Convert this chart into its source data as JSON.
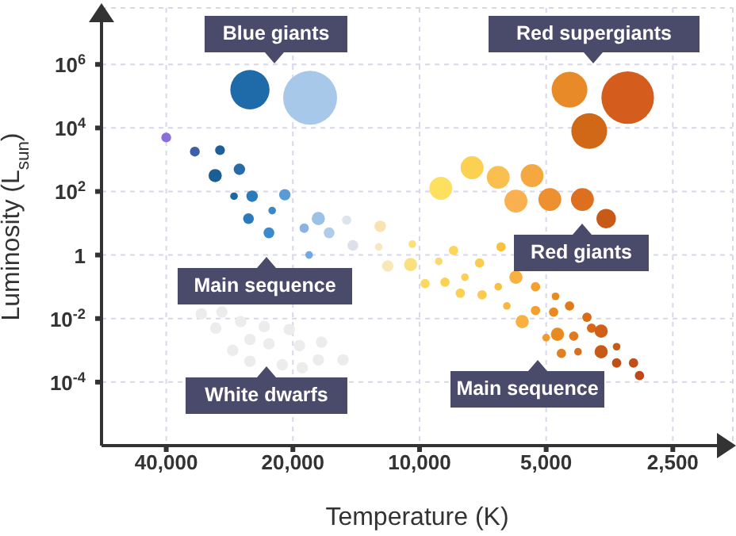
{
  "chart_data": {
    "type": "bubble",
    "xlabel": "Temperature (K)",
    "ylabel": "Luminosity (L$_{sun}$)",
    "log": "xy",
    "grid": true,
    "xlim": [
      57000,
      1800
    ],
    "xticks": [
      {
        "value": 40000,
        "label": "40,000"
      },
      {
        "value": 20000,
        "label": "20,000"
      },
      {
        "value": 10000,
        "label": "10,000"
      },
      {
        "value": 5000,
        "label": "5,000"
      },
      {
        "value": 2500,
        "label": "2,500"
      }
    ],
    "ylim": [
      1e-06,
      60000000.0
    ],
    "yticks": [
      {
        "value": 0.0001,
        "label": "10$^{-4}$"
      },
      {
        "value": 0.01,
        "label": "10$^{-2}$"
      },
      1,
      {
        "value": 100,
        "label": "10$^{2}$"
      },
      {
        "value": 10000,
        "label": "10$^{4}$"
      },
      {
        "value": 1000000,
        "label": "10$^{6}$"
      }
    ],
    "series": [
      {
        "x": [
          25300,
          18200
        ],
        "values": [
          160000,
          89000
        ],
        "sizes": [
          0.53,
          1
        ],
        "colors": [
          "#1f6aa8",
          "#a8c8ea"
        ]
      },
      {
        "x": [
          40000,
          34200,
          29800,
          30600,
          26800,
          27600,
          25000,
          20900,
          22400,
          25500,
          22800,
          17400,
          18800,
          16400,
          14900,
          14400,
          18300
        ],
        "values": [
          5000,
          1800,
          2000,
          316,
          500,
          71,
          71,
          79,
          25,
          14,
          5,
          14,
          7,
          5,
          12.6,
          2,
          1
        ],
        "sizes": [
          0.033,
          0.033,
          0.033,
          0.06,
          0.045,
          0.02,
          0.045,
          0.045,
          0.02,
          0.04,
          0.04,
          0.06,
          0.03,
          0.04,
          0.03,
          0.04,
          0.02
        ],
        "colors": [
          "#8a6fd6",
          "#3e5fa8",
          "#1f5e9a",
          "#1a5e96",
          "#2a6aa8",
          "#1a6aa0",
          "#2a7abc",
          "#5a9ad6",
          "#3a88cc",
          "#2a7abc",
          "#3a8ad0",
          "#9cc0e6",
          "#8ab4e0",
          "#b0cce8",
          "#dde4ee",
          "#dde0e8",
          "#70a8e8"
        ]
      },
      {
        "x": [
          33000,
          29500,
          30500,
          26600,
          23400,
          20400,
          25300,
          22800,
          27800,
          19300,
          17100,
          25300,
          21200,
          19000,
          17400,
          15200
        ],
        "values": [
          0.014,
          0.016,
          0.005,
          0.008,
          0.0056,
          0.0045,
          0.0022,
          0.0016,
          0.001,
          0.0014,
          0.0018,
          0.00045,
          0.00035,
          0.00028,
          0.0005,
          0.0005
        ],
        "sizes": [
          0.045,
          0.045,
          0.045,
          0.045,
          0.045,
          0.045,
          0.045,
          0.045,
          0.045,
          0.045,
          0.045,
          0.045,
          0.045,
          0.045,
          0.045,
          0.045
        ],
        "colors": [
          "#ececec",
          "#ececec",
          "#ececec",
          "#ececec",
          "#ececec",
          "#ececec",
          "#ececec",
          "#ececec",
          "#ececec",
          "#ececec",
          "#ececec",
          "#ececec",
          "#ececec",
          "#ececec",
          "#ececec",
          "#ececec"
        ]
      },
      {
        "x": [
          12400,
          12500,
          10400,
          8300,
          6400,
          11900,
          10500,
          9000,
          7200,
          9700,
          8700,
          7800,
          5900,
          8000,
          7100,
          6500,
          5300,
          6200,
          5700,
          5300,
          4750,
          4800,
          4400,
          4000,
          3900,
          3700,
          4700,
          4300,
          5000,
          4600,
          4200,
          3700,
          3400,
          3400,
          3100,
          3000
        ],
        "values": [
          8,
          1.8,
          2.2,
          1.4,
          1.8,
          0.45,
          0.5,
          0.63,
          0.56,
          0.126,
          0.14,
          0.2,
          0.2,
          0.063,
          0.056,
          0.1,
          0.1,
          0.025,
          0.008,
          0.018,
          0.05,
          0.016,
          0.025,
          0.011,
          0.005,
          0.004,
          0.0032,
          0.0028,
          0.0025,
          0.0008,
          0.0009,
          0.0009,
          0.0013,
          0.0004,
          0.0004,
          0.00016
        ],
        "sizes": [
          0.045,
          0.02,
          0.02,
          0.03,
          0.03,
          0.045,
          0.06,
          0.02,
          0.03,
          0.03,
          0.03,
          0.02,
          0.06,
          0.03,
          0.03,
          0.02,
          0.03,
          0.02,
          0.06,
          0.03,
          0.02,
          0.03,
          0.03,
          0.03,
          0.03,
          0.06,
          0.06,
          0.03,
          0.02,
          0.03,
          0.02,
          0.06,
          0.02,
          0.03,
          0.03,
          0.03
        ],
        "colors": [
          "#f7e3b0",
          "#f7e8c0",
          "#fbe07a",
          "#fcd55a",
          "#fbc040",
          "#f8e8b8",
          "#fbe080",
          "#fcd870",
          "#fccc50",
          "#fcd860",
          "#fcd050",
          "#fcd050",
          "#f8b040",
          "#fcd050",
          "#fbc850",
          "#f9c040",
          "#f4a030",
          "#f8b840",
          "#f8b040",
          "#f4a030",
          "#e88a20",
          "#e88a20",
          "#e07a1a",
          "#d86a18",
          "#d86818",
          "#d06018",
          "#e88a20",
          "#e07a20",
          "#f09a30",
          "#e08020",
          "#d87020",
          "#c85a18",
          "#c85a18",
          "#c05018",
          "#c05018",
          "#c04818"
        ]
      },
      {
        "x": [
          8900,
          7500,
          6500,
          5400,
          5900,
          4900,
          4100,
          3600
        ],
        "values": [
          126,
          560,
          280,
          316,
          50,
          56,
          56,
          14
        ],
        "sizes": [
          0.18,
          0.18,
          0.18,
          0.18,
          0.18,
          0.18,
          0.18,
          0.13
        ],
        "colors": [
          "#fde060",
          "#fcd050",
          "#f9c050",
          "#f5a840",
          "#f8b050",
          "#ec9030",
          "#dc7020",
          "#c85a18"
        ]
      },
      {
        "x": [
          4400,
          3200,
          3950
        ],
        "values": [
          160000,
          90000,
          8000
        ],
        "sizes": [
          0.44,
          0.95,
          0.44
        ],
        "colors": [
          "#e88a28",
          "#d45c1c",
          "#d06818"
        ]
      }
    ],
    "annotations": [
      "Blue giants",
      "Red supergiants",
      "Red giants",
      "Main sequence",
      "Main sequence",
      "White dwarfs"
    ]
  }
}
